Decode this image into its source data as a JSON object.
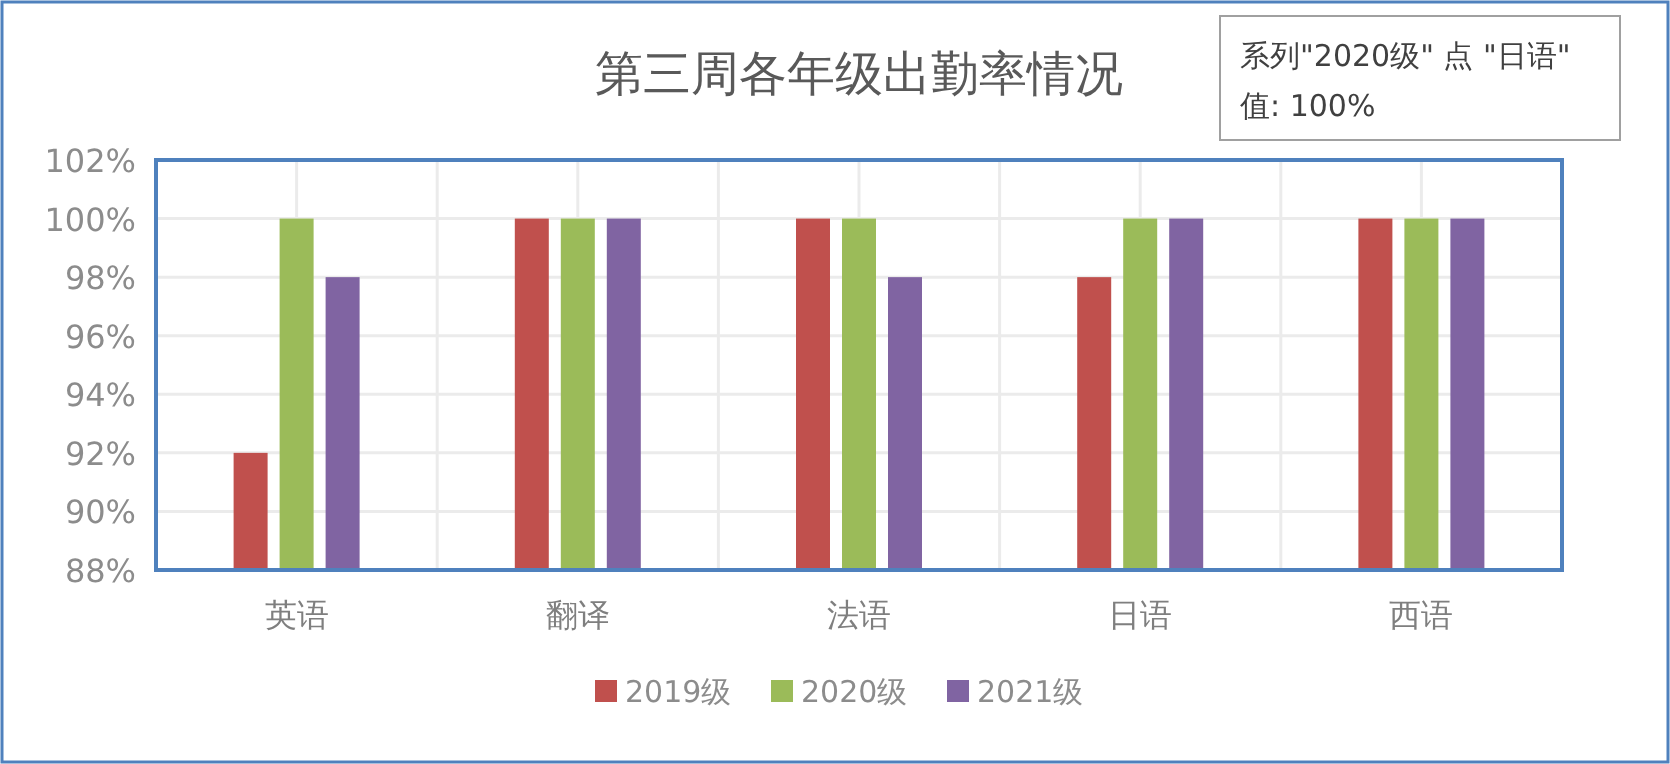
{
  "chart_data": {
    "type": "bar",
    "title": "第三周各年级出勤率情况",
    "categories": [
      "英语",
      "翻译",
      "法语",
      "日语",
      "西语"
    ],
    "series": [
      {
        "name": "2019级",
        "color": "#c0504d",
        "values": [
          92,
          100,
          100,
          98,
          100
        ]
      },
      {
        "name": "2020级",
        "color": "#9bbb59",
        "values": [
          100,
          100,
          100,
          100,
          100
        ]
      },
      {
        "name": "2021级",
        "color": "#8064a2",
        "values": [
          98,
          100,
          98,
          100,
          100
        ]
      }
    ],
    "ylim": [
      88,
      102
    ],
    "yticks": [
      {
        "value": 88,
        "label": "88%"
      },
      {
        "value": 90,
        "label": "90%"
      },
      {
        "value": 92,
        "label": "92%"
      },
      {
        "value": 94,
        "label": "94%"
      },
      {
        "value": 96,
        "label": "96%"
      },
      {
        "value": 98,
        "label": "98%"
      },
      {
        "value": 100,
        "label": "100%"
      },
      {
        "value": 102,
        "label": "102%"
      }
    ],
    "grid": true,
    "legend": "bottom",
    "annotations": [
      "系列\"2020级\" 点 \"日语\" 值: 100%"
    ]
  }
}
